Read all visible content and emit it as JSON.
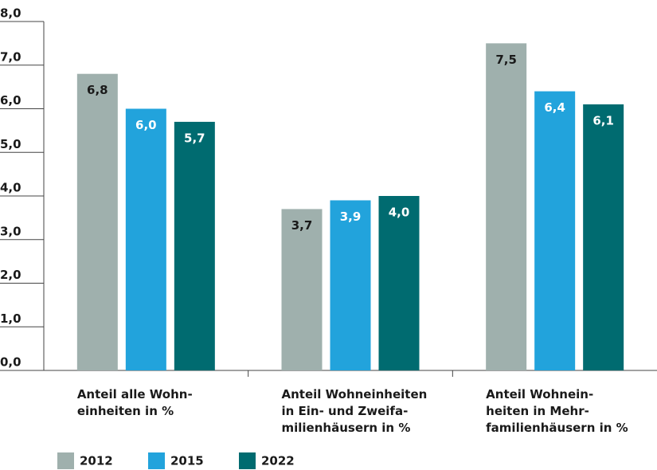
{
  "chart_data": {
    "type": "bar",
    "categories": [
      "Anteil alle Wohn-\neinheiten in %",
      "Anteil Wohneinheiten\nin Ein- und Zweifa-\nmilienhäusern in %",
      "Anteil Wohnein-\nheiten in Mehr-\nfamilienhäusern in %"
    ],
    "series": [
      {
        "name": "2012",
        "color": "#9fb0ad",
        "values": [
          6.8,
          3.7,
          7.5
        ],
        "value_labels": [
          "6,8",
          "3,7",
          "7,5"
        ]
      },
      {
        "name": "2015",
        "color": "#22a3dc",
        "values": [
          6.0,
          3.9,
          6.4
        ],
        "value_labels": [
          "6,0",
          "3,9",
          "6,4"
        ]
      },
      {
        "name": "2022",
        "color": "#006b70",
        "values": [
          5.7,
          4.0,
          6.1
        ],
        "value_labels": [
          "5,7",
          "4,0",
          "6,1"
        ]
      }
    ],
    "ylim": [
      0,
      8
    ],
    "yticks": [
      {
        "value": 0,
        "label": "0,0"
      },
      {
        "value": 1,
        "label": "1,0"
      },
      {
        "value": 2,
        "label": "2,0"
      },
      {
        "value": 3,
        "label": "3,0"
      },
      {
        "value": 4,
        "label": "4,0"
      },
      {
        "value": 5,
        "label": "5,0"
      },
      {
        "value": 6,
        "label": "6,0"
      },
      {
        "value": 7,
        "label": "7,0"
      },
      {
        "value": 8,
        "label": "8,0"
      }
    ],
    "grid": false,
    "legend": "bottom-left"
  }
}
